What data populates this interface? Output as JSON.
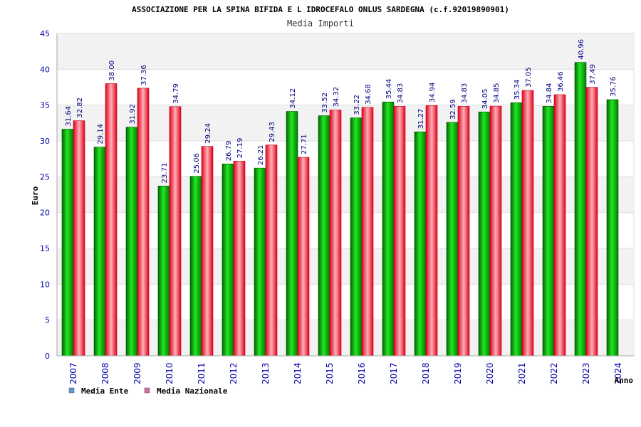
{
  "chart_data": {
    "type": "bar",
    "title": "ASSOCIAZIONE PER LA SPINA BIFIDA E L IDROCEFALO ONLUS SARDEGNA (c.f.92019890901)",
    "subtitle": "Media Importi",
    "xlabel": "Anno",
    "ylabel": "Euro",
    "ylim": [
      0,
      45
    ],
    "yticks": [
      0,
      5,
      10,
      15,
      20,
      25,
      30,
      35,
      40,
      45
    ],
    "categories": [
      "2007",
      "2008",
      "2009",
      "2010",
      "2011",
      "2012",
      "2013",
      "2014",
      "2015",
      "2016",
      "2017",
      "2018",
      "2019",
      "2020",
      "2021",
      "2022",
      "2023",
      "2024"
    ],
    "series": [
      {
        "name": "Media Ente",
        "values": [
          31.64,
          29.14,
          31.92,
          23.71,
          25.06,
          26.79,
          26.21,
          34.12,
          33.52,
          33.22,
          35.44,
          31.27,
          32.59,
          34.05,
          35.34,
          34.84,
          40.96,
          35.76
        ],
        "labels": [
          "31.64",
          "29.14",
          "31.92",
          "23.71",
          "25.06",
          "26.79",
          "26.21",
          "34.12",
          "33.52",
          "33.22",
          "35.44",
          "31.27",
          "32.59",
          "34.05",
          "35.34",
          "34.84",
          "40.96",
          "35.76"
        ],
        "color": "#00c000",
        "legend_color": "#5b9bd5"
      },
      {
        "name": "Media Nazionale",
        "values": [
          32.82,
          38.0,
          37.36,
          34.79,
          29.24,
          27.19,
          29.43,
          27.71,
          34.32,
          34.68,
          34.83,
          34.94,
          34.83,
          34.85,
          37.05,
          36.46,
          37.49,
          null
        ],
        "labels": [
          "32.82",
          "38.00",
          "37.36",
          "34.79",
          "29.24",
          "27.19",
          "29.43",
          "27.71",
          "34.32",
          "34.68",
          "34.83",
          "34.94",
          "34.83",
          "34.85",
          "37.05",
          "36.46",
          "37.49",
          ""
        ],
        "color": "#ff2a3a",
        "legend_color": "#d070a0"
      }
    ],
    "grid": true,
    "legend": "bottom-left"
  },
  "colors": {
    "axis_text": "#0000aa",
    "value_label": "#000080",
    "grid_band": "#f2f2f2",
    "grid_line": "#dddddd",
    "axis_line": "#aaaaaa"
  }
}
